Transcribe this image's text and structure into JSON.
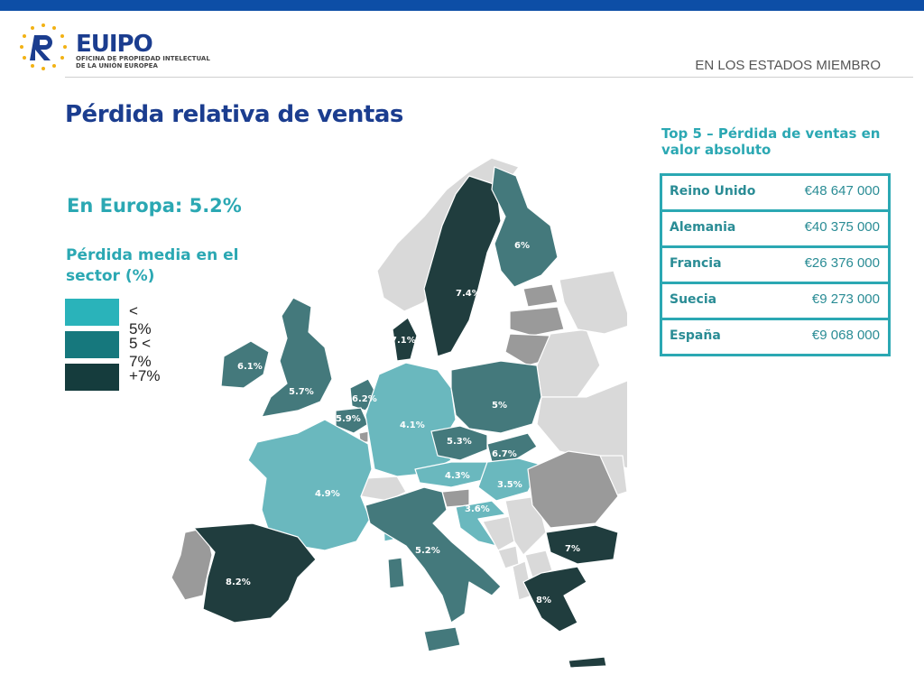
{
  "header": {
    "logo_word": "EUIPO",
    "logo_sub_line1": "OFICINA DE PROPIEDAD INTELECTUAL",
    "logo_sub_line2": "DE LA UNIÓN EUROPEA",
    "section": "EN LOS ESTADOS MIEMBRO"
  },
  "title": "Pérdida relativa de ventas",
  "europe_total": "En Europa: 5.2%",
  "legend": {
    "title": "Pérdida media en el sector (%)",
    "items": [
      {
        "label": "< 5%",
        "color": "#2ab3ba"
      },
      {
        "label": "5 < 7%",
        "color": "#16787d"
      },
      {
        "label": "+7%",
        "color": "#153c3d"
      }
    ]
  },
  "top5": {
    "title": "Top 5 – Pérdida de ventas en valor absoluto",
    "rows": [
      {
        "country": "Reino Unido",
        "value": "€48 647 000"
      },
      {
        "country": "Alemania",
        "value": "€40 375 000"
      },
      {
        "country": "Francia",
        "value": "€26 376 000"
      },
      {
        "country": "Suecia",
        "value": "€9 273 000"
      },
      {
        "country": "España",
        "value": "€9 068 000"
      }
    ]
  },
  "colors": {
    "low": "#6ab8be",
    "mid": "#44797c",
    "high": "#203d3e",
    "nodata": "#d9d9d9",
    "grey": "#9a9a9a",
    "accent": "#2ba8b3",
    "title": "#1b3d8f"
  },
  "map_labels": {
    "sweden": "7.4%",
    "finland": "6%",
    "denmark": "7.1%",
    "ireland": "6.1%",
    "uk": "5.7%",
    "netherlands": "6.2%",
    "belgium": "5.9%",
    "germany": "4.1%",
    "poland": "5%",
    "czech": "5.3%",
    "slovakia": "6.7%",
    "austria": "4.3%",
    "hungary": "3.5%",
    "france": "4.9%",
    "croatia": "3.6%",
    "italy": "5.2%",
    "bulgaria": "7%",
    "greece": "8%",
    "spain": "8.2%"
  }
}
